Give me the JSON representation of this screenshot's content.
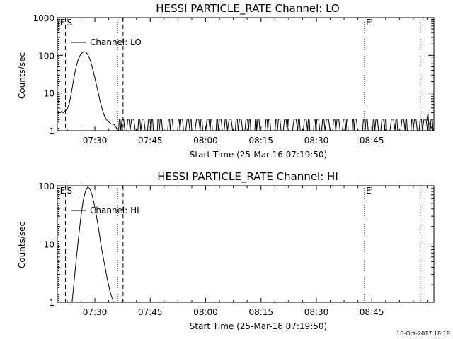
{
  "chart_data": [
    {
      "type": "line",
      "title": "HESSI PARTICLE_RATE Channel: LO",
      "xlabel": "Start Time (25-Mar-16 07:19:50)",
      "ylabel": "Counts/sec",
      "yscale": "log",
      "ylim": [
        1,
        1000
      ],
      "ytick_labels": [
        "1",
        "10",
        "100",
        "1000"
      ],
      "yticks": [
        1,
        10,
        100,
        1000
      ],
      "xlim_min": [
        0,
        102
      ],
      "xticks_min": [
        10.17,
        25.17,
        40.17,
        55.17,
        70.17,
        85.17
      ],
      "xtick_labels": [
        "07:30",
        "07:45",
        "08:00",
        "08:15",
        "08:30",
        "08:45"
      ],
      "legend": "Channel: LO",
      "markers": [
        {
          "label": "E",
          "x_min": 0.3,
          "style": "dotted"
        },
        {
          "label": "S",
          "x_min": 2.2,
          "style": "dashed"
        },
        {
          "label": "",
          "x_min": 16.3,
          "style": "dotted"
        },
        {
          "label": "",
          "x_min": 17.8,
          "style": "dashed"
        },
        {
          "label": "E",
          "x_min": 83.2,
          "style": "dotted"
        },
        {
          "label": "",
          "x_min": 98.3,
          "style": "dotted"
        }
      ],
      "series": [
        {
          "points": [
            [
              0.0,
              3
            ],
            [
              0.8,
              3
            ],
            [
              1.2,
              3.3
            ],
            [
              1.6,
              3
            ],
            [
              2.0,
              3.3
            ],
            [
              2.6,
              3.6
            ],
            [
              3.2,
              5
            ],
            [
              3.8,
              10
            ],
            [
              4.4,
              22
            ],
            [
              5.0,
              45
            ],
            [
              5.6,
              75
            ],
            [
              6.2,
              100
            ],
            [
              6.8,
              120
            ],
            [
              7.4,
              125
            ],
            [
              8.0,
              115
            ],
            [
              8.6,
              90
            ],
            [
              9.2,
              60
            ],
            [
              9.8,
              36
            ],
            [
              10.4,
              20
            ],
            [
              11.0,
              11
            ],
            [
              11.6,
              6
            ],
            [
              12.2,
              3.6
            ],
            [
              12.8,
              2.4
            ],
            [
              13.4,
              1.9
            ],
            [
              14.0,
              1.7
            ],
            [
              14.6,
              1.5
            ],
            [
              15.2,
              1.5
            ],
            [
              15.8,
              1.3
            ],
            [
              16.4,
              1.0
            ]
          ]
        }
      ],
      "background_activity": {
        "x_range_min": [
          16.6,
          101.5
        ],
        "levels": [
          1,
          2
        ],
        "final_spike": {
          "x_min": 100.4,
          "value": 3
        }
      }
    },
    {
      "type": "line",
      "title": "HESSI PARTICLE_RATE Channel: HI",
      "xlabel": "Start Time (25-Mar-16 07:19:50)",
      "ylabel": "Counts/sec",
      "yscale": "log",
      "ylim": [
        1,
        100
      ],
      "ytick_labels": [
        "1",
        "10",
        "100"
      ],
      "yticks": [
        1,
        10,
        100
      ],
      "xlim_min": [
        0,
        102
      ],
      "xticks_min": [
        10.17,
        25.17,
        40.17,
        55.17,
        70.17,
        85.17
      ],
      "xtick_labels": [
        "07:30",
        "07:45",
        "08:00",
        "08:15",
        "08:30",
        "08:45"
      ],
      "legend": "Channel: HI",
      "markers": [
        {
          "label": "E",
          "x_min": 0.3,
          "style": "dotted"
        },
        {
          "label": "S",
          "x_min": 2.2,
          "style": "dashed"
        },
        {
          "label": "",
          "x_min": 16.3,
          "style": "dotted"
        },
        {
          "label": "",
          "x_min": 17.8,
          "style": "dashed"
        },
        {
          "label": "E",
          "x_min": 83.2,
          "style": "dotted"
        },
        {
          "label": "",
          "x_min": 98.3,
          "style": "dotted"
        }
      ],
      "series": [
        {
          "points": [
            [
              4.0,
              1.0
            ],
            [
              4.6,
              2.5
            ],
            [
              5.2,
              6
            ],
            [
              5.8,
              14
            ],
            [
              6.4,
              30
            ],
            [
              7.0,
              55
            ],
            [
              7.6,
              80
            ],
            [
              8.2,
              95
            ],
            [
              8.8,
              90
            ],
            [
              9.4,
              70
            ],
            [
              10.0,
              48
            ],
            [
              10.6,
              30
            ],
            [
              11.2,
              18
            ],
            [
              11.8,
              10
            ],
            [
              12.4,
              6
            ],
            [
              13.0,
              3.8
            ],
            [
              13.6,
              2.4
            ],
            [
              14.2,
              1.6
            ],
            [
              14.8,
              1.2
            ],
            [
              15.2,
              1.0
            ]
          ]
        }
      ]
    }
  ],
  "footer": {
    "timestamp": "16-Oct-2017 18:18"
  }
}
